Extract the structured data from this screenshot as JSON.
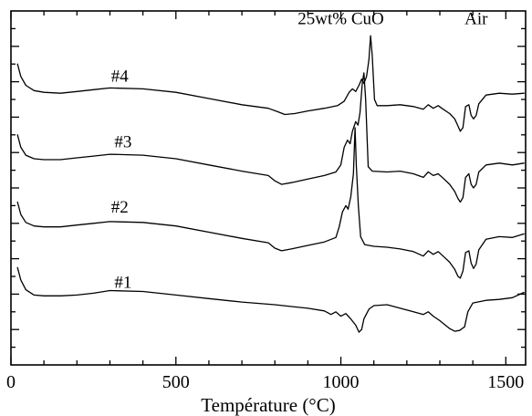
{
  "chart_data": {
    "type": "line",
    "title": "",
    "xlabel": "Température (°C)",
    "ylabel": "",
    "xlim": [
      0,
      1560
    ],
    "ylim": [
      0,
      40
    ],
    "x_ticks": [
      0,
      500,
      1000,
      1500
    ],
    "x_tick_labels": [
      "0",
      "500",
      "1000",
      "1500"
    ],
    "y_tick_labels_shown": false,
    "y_ticks_count": 20,
    "grid": false,
    "legend": "none",
    "annotations": [
      {
        "text": "25wt% CuO",
        "x": 1000,
        "y": 38.5
      },
      {
        "text": "Air",
        "x": 1410,
        "y": 38.5
      }
    ],
    "series": [
      {
        "name": "#4",
        "label_at": [
          330,
          32.0
        ],
        "points": [
          [
            20,
            34.0
          ],
          [
            30,
            32.6
          ],
          [
            45,
            31.6
          ],
          [
            70,
            31.0
          ],
          [
            100,
            30.8
          ],
          [
            150,
            30.7
          ],
          [
            200,
            30.9
          ],
          [
            250,
            31.1
          ],
          [
            300,
            31.3
          ],
          [
            400,
            31.2
          ],
          [
            500,
            30.8
          ],
          [
            600,
            30.1
          ],
          [
            700,
            29.4
          ],
          [
            780,
            29.0
          ],
          [
            810,
            28.6
          ],
          [
            830,
            28.3
          ],
          [
            860,
            28.4
          ],
          [
            900,
            28.7
          ],
          [
            950,
            29.0
          ],
          [
            990,
            29.3
          ],
          [
            1010,
            29.8
          ],
          [
            1025,
            30.8
          ],
          [
            1035,
            31.2
          ],
          [
            1045,
            30.9
          ],
          [
            1055,
            31.6
          ],
          [
            1063,
            32.3
          ],
          [
            1070,
            31.8
          ],
          [
            1078,
            32.6
          ],
          [
            1085,
            34.5
          ],
          [
            1090,
            37.2
          ],
          [
            1095,
            35.0
          ],
          [
            1102,
            30.0
          ],
          [
            1110,
            29.3
          ],
          [
            1140,
            29.3
          ],
          [
            1180,
            29.4
          ],
          [
            1220,
            29.2
          ],
          [
            1250,
            28.9
          ],
          [
            1265,
            29.4
          ],
          [
            1280,
            29.0
          ],
          [
            1295,
            29.3
          ],
          [
            1310,
            28.9
          ],
          [
            1330,
            28.4
          ],
          [
            1345,
            27.8
          ],
          [
            1355,
            27.0
          ],
          [
            1362,
            26.4
          ],
          [
            1370,
            26.8
          ],
          [
            1378,
            29.2
          ],
          [
            1388,
            29.4
          ],
          [
            1395,
            28.2
          ],
          [
            1402,
            27.8
          ],
          [
            1410,
            28.2
          ],
          [
            1418,
            29.5
          ],
          [
            1440,
            30.5
          ],
          [
            1480,
            30.7
          ],
          [
            1520,
            30.6
          ],
          [
            1555,
            30.7
          ]
        ]
      },
      {
        "name": "#3",
        "label_at": [
          340,
          24.6
        ],
        "points": [
          [
            20,
            26.0
          ],
          [
            30,
            24.6
          ],
          [
            45,
            23.7
          ],
          [
            70,
            23.3
          ],
          [
            100,
            23.2
          ],
          [
            150,
            23.2
          ],
          [
            200,
            23.4
          ],
          [
            250,
            23.6
          ],
          [
            300,
            23.8
          ],
          [
            400,
            23.7
          ],
          [
            500,
            23.3
          ],
          [
            600,
            22.6
          ],
          [
            700,
            21.9
          ],
          [
            780,
            21.4
          ],
          [
            800,
            20.8
          ],
          [
            820,
            20.4
          ],
          [
            850,
            20.6
          ],
          [
            900,
            21.0
          ],
          [
            950,
            21.4
          ],
          [
            985,
            21.8
          ],
          [
            1000,
            22.6
          ],
          [
            1010,
            24.6
          ],
          [
            1020,
            25.4
          ],
          [
            1028,
            25.0
          ],
          [
            1035,
            26.4
          ],
          [
            1045,
            27.5
          ],
          [
            1052,
            27.1
          ],
          [
            1058,
            28.5
          ],
          [
            1065,
            31.8
          ],
          [
            1070,
            33.0
          ],
          [
            1075,
            30.0
          ],
          [
            1083,
            22.4
          ],
          [
            1095,
            21.9
          ],
          [
            1140,
            21.8
          ],
          [
            1180,
            21.9
          ],
          [
            1220,
            21.6
          ],
          [
            1250,
            21.2
          ],
          [
            1265,
            21.8
          ],
          [
            1280,
            21.4
          ],
          [
            1295,
            21.6
          ],
          [
            1310,
            21.1
          ],
          [
            1330,
            20.4
          ],
          [
            1345,
            19.6
          ],
          [
            1355,
            18.8
          ],
          [
            1362,
            18.4
          ],
          [
            1370,
            18.9
          ],
          [
            1378,
            21.2
          ],
          [
            1388,
            21.6
          ],
          [
            1395,
            20.4
          ],
          [
            1402,
            20.0
          ],
          [
            1410,
            20.4
          ],
          [
            1418,
            21.8
          ],
          [
            1440,
            22.6
          ],
          [
            1480,
            22.8
          ],
          [
            1520,
            22.6
          ],
          [
            1555,
            22.8
          ]
        ]
      },
      {
        "name": "#2",
        "label_at": [
          330,
          17.2
        ],
        "points": [
          [
            20,
            18.4
          ],
          [
            30,
            17.0
          ],
          [
            45,
            16.1
          ],
          [
            70,
            15.7
          ],
          [
            100,
            15.6
          ],
          [
            150,
            15.6
          ],
          [
            200,
            15.8
          ],
          [
            250,
            16.0
          ],
          [
            300,
            16.2
          ],
          [
            400,
            16.1
          ],
          [
            500,
            15.7
          ],
          [
            600,
            15.0
          ],
          [
            700,
            14.3
          ],
          [
            780,
            13.8
          ],
          [
            800,
            13.2
          ],
          [
            820,
            12.9
          ],
          [
            850,
            13.1
          ],
          [
            900,
            13.5
          ],
          [
            950,
            13.9
          ],
          [
            985,
            14.4
          ],
          [
            995,
            15.6
          ],
          [
            1005,
            17.3
          ],
          [
            1015,
            18.0
          ],
          [
            1022,
            17.6
          ],
          [
            1030,
            19.0
          ],
          [
            1038,
            21.6
          ],
          [
            1043,
            26.8
          ],
          [
            1047,
            22.5
          ],
          [
            1053,
            18.0
          ],
          [
            1060,
            14.5
          ],
          [
            1072,
            13.6
          ],
          [
            1100,
            13.4
          ],
          [
            1140,
            13.3
          ],
          [
            1180,
            13.1
          ],
          [
            1220,
            12.8
          ],
          [
            1250,
            12.3
          ],
          [
            1265,
            12.9
          ],
          [
            1280,
            12.5
          ],
          [
            1295,
            12.8
          ],
          [
            1310,
            12.3
          ],
          [
            1330,
            11.6
          ],
          [
            1345,
            10.8
          ],
          [
            1355,
            10.0
          ],
          [
            1362,
            9.8
          ],
          [
            1370,
            10.6
          ],
          [
            1378,
            12.7
          ],
          [
            1388,
            12.9
          ],
          [
            1395,
            11.5
          ],
          [
            1402,
            10.9
          ],
          [
            1410,
            11.4
          ],
          [
            1418,
            13.0
          ],
          [
            1440,
            14.2
          ],
          [
            1480,
            14.5
          ],
          [
            1520,
            14.4
          ],
          [
            1555,
            14.8
          ]
        ]
      },
      {
        "name": "#1",
        "label_at": [
          340,
          8.7
        ],
        "points": [
          [
            20,
            11.0
          ],
          [
            30,
            9.6
          ],
          [
            45,
            8.5
          ],
          [
            70,
            7.9
          ],
          [
            100,
            7.8
          ],
          [
            150,
            7.8
          ],
          [
            200,
            7.9
          ],
          [
            250,
            8.1
          ],
          [
            300,
            8.4
          ],
          [
            400,
            8.3
          ],
          [
            500,
            7.9
          ],
          [
            600,
            7.5
          ],
          [
            700,
            7.1
          ],
          [
            800,
            6.8
          ],
          [
            850,
            6.6
          ],
          [
            900,
            6.4
          ],
          [
            950,
            6.1
          ],
          [
            970,
            5.7
          ],
          [
            985,
            6.0
          ],
          [
            1000,
            5.5
          ],
          [
            1015,
            5.8
          ],
          [
            1030,
            5.2
          ],
          [
            1045,
            4.5
          ],
          [
            1055,
            3.7
          ],
          [
            1063,
            4.0
          ],
          [
            1070,
            5.2
          ],
          [
            1085,
            6.3
          ],
          [
            1100,
            6.7
          ],
          [
            1140,
            6.8
          ],
          [
            1180,
            6.4
          ],
          [
            1220,
            6.0
          ],
          [
            1250,
            5.7
          ],
          [
            1265,
            6.0
          ],
          [
            1280,
            5.5
          ],
          [
            1300,
            5.0
          ],
          [
            1330,
            4.1
          ],
          [
            1345,
            3.8
          ],
          [
            1360,
            3.9
          ],
          [
            1375,
            4.3
          ],
          [
            1385,
            6.0
          ],
          [
            1400,
            7.0
          ],
          [
            1440,
            7.3
          ],
          [
            1480,
            7.4
          ],
          [
            1520,
            7.6
          ],
          [
            1555,
            8.2
          ]
        ]
      }
    ]
  }
}
